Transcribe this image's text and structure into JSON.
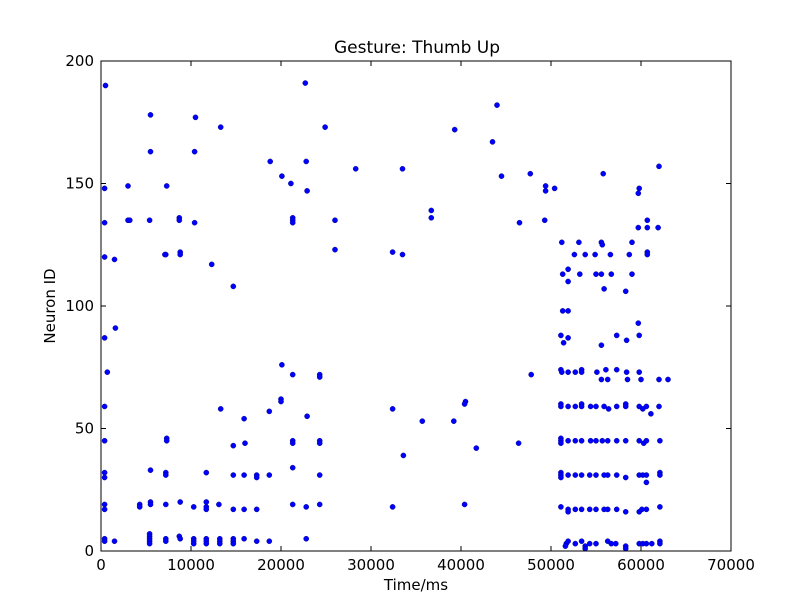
{
  "chart_data": {
    "type": "scatter",
    "title": "Gesture: Thumb Up",
    "xlabel": "Time/ms",
    "ylabel": "Neuron ID",
    "xlim": [
      0,
      70000
    ],
    "ylim": [
      0,
      200
    ],
    "xticks": [
      0,
      10000,
      20000,
      30000,
      40000,
      50000,
      60000,
      70000
    ],
    "yticks": [
      0,
      50,
      100,
      150,
      200
    ],
    "xtick_labels": [
      "0",
      "10000",
      "20000",
      "30000",
      "40000",
      "50000",
      "60000",
      "70000"
    ],
    "ytick_labels": [
      "0",
      "50",
      "100",
      "150",
      "200"
    ],
    "grid": false,
    "legend": false,
    "marker_color": "#0000ff",
    "series": [
      {
        "points": [
          [
            500,
            190
          ],
          [
            400,
            148
          ],
          [
            400,
            134
          ],
          [
            400,
            120
          ],
          [
            400,
            87
          ],
          [
            400,
            59
          ],
          [
            400,
            45
          ],
          [
            400,
            32
          ],
          [
            400,
            30
          ],
          [
            400,
            19
          ],
          [
            400,
            17
          ],
          [
            400,
            5
          ],
          [
            400,
            4
          ],
          [
            700,
            73
          ],
          [
            1500,
            119
          ],
          [
            1600,
            91
          ],
          [
            1500,
            4
          ],
          [
            3000,
            149
          ],
          [
            3000,
            135
          ],
          [
            3200,
            135
          ],
          [
            4300,
            19
          ],
          [
            4300,
            18
          ],
          [
            5500,
            178
          ],
          [
            5500,
            163
          ],
          [
            5400,
            135
          ],
          [
            5500,
            33
          ],
          [
            5500,
            20
          ],
          [
            5500,
            19
          ],
          [
            5400,
            7
          ],
          [
            5400,
            6
          ],
          [
            5400,
            5
          ],
          [
            5400,
            4
          ],
          [
            5400,
            3
          ],
          [
            7300,
            149
          ],
          [
            7200,
            121
          ],
          [
            7100,
            121
          ],
          [
            7300,
            46
          ],
          [
            7300,
            45
          ],
          [
            7200,
            32
          ],
          [
            7200,
            31
          ],
          [
            7200,
            19
          ],
          [
            7200,
            5
          ],
          [
            7200,
            4
          ],
          [
            8700,
            136
          ],
          [
            8700,
            135
          ],
          [
            8800,
            122
          ],
          [
            8800,
            121
          ],
          [
            8800,
            20
          ],
          [
            8700,
            6
          ],
          [
            8800,
            5
          ],
          [
            10500,
            177
          ],
          [
            10400,
            163
          ],
          [
            10400,
            134
          ],
          [
            10300,
            18
          ],
          [
            10300,
            5
          ],
          [
            10300,
            4
          ],
          [
            10300,
            3
          ],
          [
            11700,
            32
          ],
          [
            11700,
            20
          ],
          [
            11700,
            18
          ],
          [
            11700,
            17
          ],
          [
            11700,
            5
          ],
          [
            11700,
            4
          ],
          [
            11700,
            3
          ],
          [
            12300,
            117
          ],
          [
            13300,
            173
          ],
          [
            13300,
            58
          ],
          [
            13100,
            19
          ],
          [
            13200,
            5
          ],
          [
            13200,
            4
          ],
          [
            13200,
            3
          ],
          [
            14700,
            108
          ],
          [
            14700,
            43
          ],
          [
            14700,
            31
          ],
          [
            14700,
            17
          ],
          [
            14700,
            5
          ],
          [
            14700,
            4
          ],
          [
            14700,
            3
          ],
          [
            15900,
            54
          ],
          [
            16000,
            44
          ],
          [
            15900,
            31
          ],
          [
            15900,
            17
          ],
          [
            15900,
            5
          ],
          [
            17300,
            31
          ],
          [
            17300,
            30
          ],
          [
            17300,
            17
          ],
          [
            17300,
            4
          ],
          [
            18800,
            159
          ],
          [
            18700,
            57
          ],
          [
            18700,
            31
          ],
          [
            18700,
            4
          ],
          [
            20100,
            153
          ],
          [
            20100,
            76
          ],
          [
            20000,
            62
          ],
          [
            20000,
            61
          ],
          [
            21100,
            150
          ],
          [
            21300,
            136
          ],
          [
            21300,
            135
          ],
          [
            21300,
            134
          ],
          [
            21300,
            72
          ],
          [
            21300,
            45
          ],
          [
            21300,
            44
          ],
          [
            21300,
            34
          ],
          [
            21300,
            19
          ],
          [
            22700,
            191
          ],
          [
            22800,
            159
          ],
          [
            22900,
            147
          ],
          [
            22900,
            55
          ],
          [
            22800,
            18
          ],
          [
            22800,
            5
          ],
          [
            24300,
            72
          ],
          [
            24300,
            71
          ],
          [
            24300,
            45
          ],
          [
            24300,
            44
          ],
          [
            24300,
            31
          ],
          [
            24300,
            19
          ],
          [
            24900,
            173
          ],
          [
            26000,
            135
          ],
          [
            26000,
            123
          ],
          [
            28300,
            156
          ],
          [
            32400,
            122
          ],
          [
            32400,
            58
          ],
          [
            32400,
            18
          ],
          [
            33500,
            156
          ],
          [
            33500,
            121
          ],
          [
            33600,
            39
          ],
          [
            35700,
            53
          ],
          [
            36700,
            139
          ],
          [
            36700,
            136
          ],
          [
            39300,
            172
          ],
          [
            39200,
            53
          ],
          [
            40500,
            61
          ],
          [
            40400,
            60
          ],
          [
            40400,
            19
          ],
          [
            41700,
            42
          ],
          [
            43500,
            167
          ],
          [
            44000,
            182
          ],
          [
            44500,
            153
          ],
          [
            46500,
            134
          ],
          [
            46400,
            44
          ],
          [
            47700,
            154
          ],
          [
            47800,
            72
          ],
          [
            49400,
            149
          ],
          [
            49400,
            147
          ],
          [
            49300,
            135
          ],
          [
            50400,
            148
          ],
          [
            51200,
            126
          ],
          [
            51300,
            113
          ],
          [
            51300,
            98
          ],
          [
            51100,
            88
          ],
          [
            51400,
            85
          ],
          [
            51100,
            74
          ],
          [
            51200,
            73
          ],
          [
            51100,
            60
          ],
          [
            51100,
            59
          ],
          [
            51100,
            46
          ],
          [
            51100,
            45
          ],
          [
            51100,
            44
          ],
          [
            51100,
            32
          ],
          [
            51100,
            31
          ],
          [
            51100,
            30
          ],
          [
            51100,
            18
          ],
          [
            51700,
            3
          ],
          [
            51600,
            2
          ],
          [
            51900,
            110
          ],
          [
            51900,
            115
          ],
          [
            51900,
            98
          ],
          [
            51900,
            87
          ],
          [
            51900,
            73
          ],
          [
            51900,
            59
          ],
          [
            51900,
            45
          ],
          [
            51900,
            31
          ],
          [
            51900,
            17
          ],
          [
            51900,
            16
          ],
          [
            51900,
            4
          ],
          [
            52600,
            121
          ],
          [
            52700,
            73
          ],
          [
            52700,
            59
          ],
          [
            52700,
            45
          ],
          [
            52700,
            31
          ],
          [
            52700,
            17
          ],
          [
            52700,
            3
          ],
          [
            53100,
            126
          ],
          [
            53200,
            113
          ],
          [
            53400,
            74
          ],
          [
            53400,
            73
          ],
          [
            53400,
            60
          ],
          [
            53400,
            59
          ],
          [
            53400,
            45
          ],
          [
            53400,
            31
          ],
          [
            53400,
            17
          ],
          [
            53400,
            4
          ],
          [
            53800,
            121
          ],
          [
            53800,
            2
          ],
          [
            53800,
            1
          ],
          [
            54400,
            59
          ],
          [
            54400,
            45
          ],
          [
            54300,
            31
          ],
          [
            54300,
            17
          ],
          [
            54300,
            3
          ],
          [
            54900,
            121
          ],
          [
            55000,
            113
          ],
          [
            55000,
            59
          ],
          [
            55000,
            45
          ],
          [
            55000,
            31
          ],
          [
            55000,
            17
          ],
          [
            55000,
            3
          ],
          [
            55100,
            73
          ],
          [
            55600,
            126
          ],
          [
            55700,
            125
          ],
          [
            55600,
            113
          ],
          [
            55600,
            84
          ],
          [
            55600,
            70
          ],
          [
            55700,
            45
          ],
          [
            55800,
            154
          ],
          [
            55900,
            107
          ],
          [
            55900,
            59
          ],
          [
            55900,
            31
          ],
          [
            55900,
            17
          ],
          [
            56100,
            74
          ],
          [
            56300,
            70
          ],
          [
            56400,
            58
          ],
          [
            56300,
            45
          ],
          [
            56300,
            31
          ],
          [
            56300,
            17
          ],
          [
            56300,
            4
          ],
          [
            56600,
            121
          ],
          [
            56700,
            113
          ],
          [
            56700,
            3
          ],
          [
            57300,
            88
          ],
          [
            57300,
            74
          ],
          [
            57300,
            59
          ],
          [
            57300,
            45
          ],
          [
            57300,
            31
          ],
          [
            57300,
            17
          ],
          [
            57200,
            3
          ],
          [
            58300,
            106
          ],
          [
            58400,
            86
          ],
          [
            58400,
            73
          ],
          [
            58500,
            70
          ],
          [
            58300,
            60
          ],
          [
            58300,
            59
          ],
          [
            58300,
            45
          ],
          [
            58300,
            30
          ],
          [
            58300,
            16
          ],
          [
            58300,
            2
          ],
          [
            58300,
            1
          ],
          [
            58700,
            121
          ],
          [
            59000,
            126
          ],
          [
            59000,
            113
          ],
          [
            59800,
            148
          ],
          [
            59700,
            146
          ],
          [
            59700,
            132
          ],
          [
            59700,
            93
          ],
          [
            59800,
            88
          ],
          [
            59800,
            73
          ],
          [
            59800,
            59
          ],
          [
            59800,
            45
          ],
          [
            59800,
            31
          ],
          [
            59800,
            16
          ],
          [
            59800,
            3
          ],
          [
            60000,
            70
          ],
          [
            60200,
            58
          ],
          [
            60300,
            44
          ],
          [
            60200,
            31
          ],
          [
            60100,
            17
          ],
          [
            60200,
            3
          ],
          [
            60700,
            135
          ],
          [
            60700,
            132
          ],
          [
            60700,
            122
          ],
          [
            60700,
            121
          ],
          [
            60600,
            59
          ],
          [
            60600,
            45
          ],
          [
            60600,
            31
          ],
          [
            60600,
            28
          ],
          [
            60600,
            17
          ],
          [
            60600,
            3
          ],
          [
            61100,
            56
          ],
          [
            61200,
            3
          ],
          [
            62000,
            157
          ],
          [
            61900,
            132
          ],
          [
            62000,
            70
          ],
          [
            62000,
            59
          ],
          [
            62100,
            45
          ],
          [
            62100,
            32
          ],
          [
            62100,
            31
          ],
          [
            62100,
            18
          ],
          [
            62100,
            4
          ],
          [
            62100,
            3
          ],
          [
            63000,
            70
          ]
        ]
      }
    ]
  }
}
